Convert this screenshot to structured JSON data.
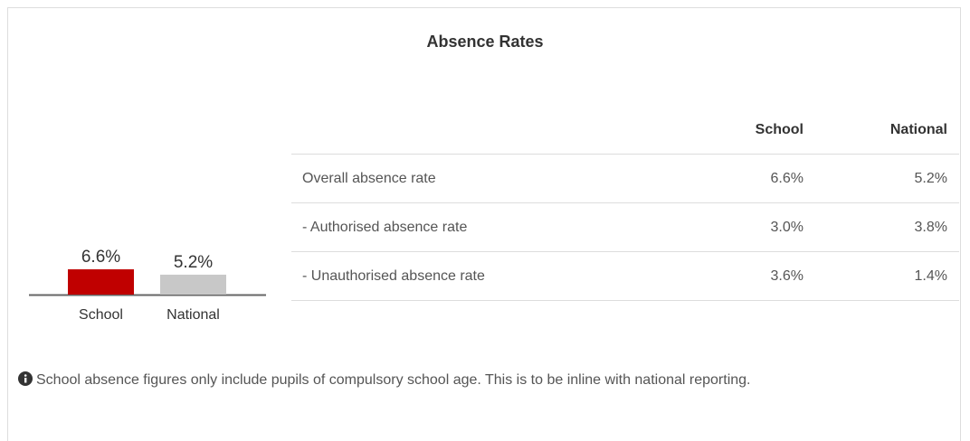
{
  "title": "Absence Rates",
  "chart_data": {
    "type": "bar",
    "categories": [
      "School",
      "National"
    ],
    "values": [
      6.6,
      5.2
    ],
    "value_labels": [
      "6.6%",
      "5.2%"
    ],
    "colors": [
      "#c00000",
      "#c8c8c8"
    ]
  },
  "table": {
    "columns": [
      "School",
      "National"
    ],
    "rows": [
      {
        "label": "Overall absence rate",
        "values": [
          "6.6%",
          "5.2%"
        ]
      },
      {
        "label": "- Authorised absence rate",
        "values": [
          "3.0%",
          "3.8%"
        ]
      },
      {
        "label": "- Unauthorised absence rate",
        "values": [
          "3.6%",
          "1.4%"
        ]
      }
    ]
  },
  "note": "School absence figures only include pupils of compulsory school age. This is to be inline with national reporting."
}
